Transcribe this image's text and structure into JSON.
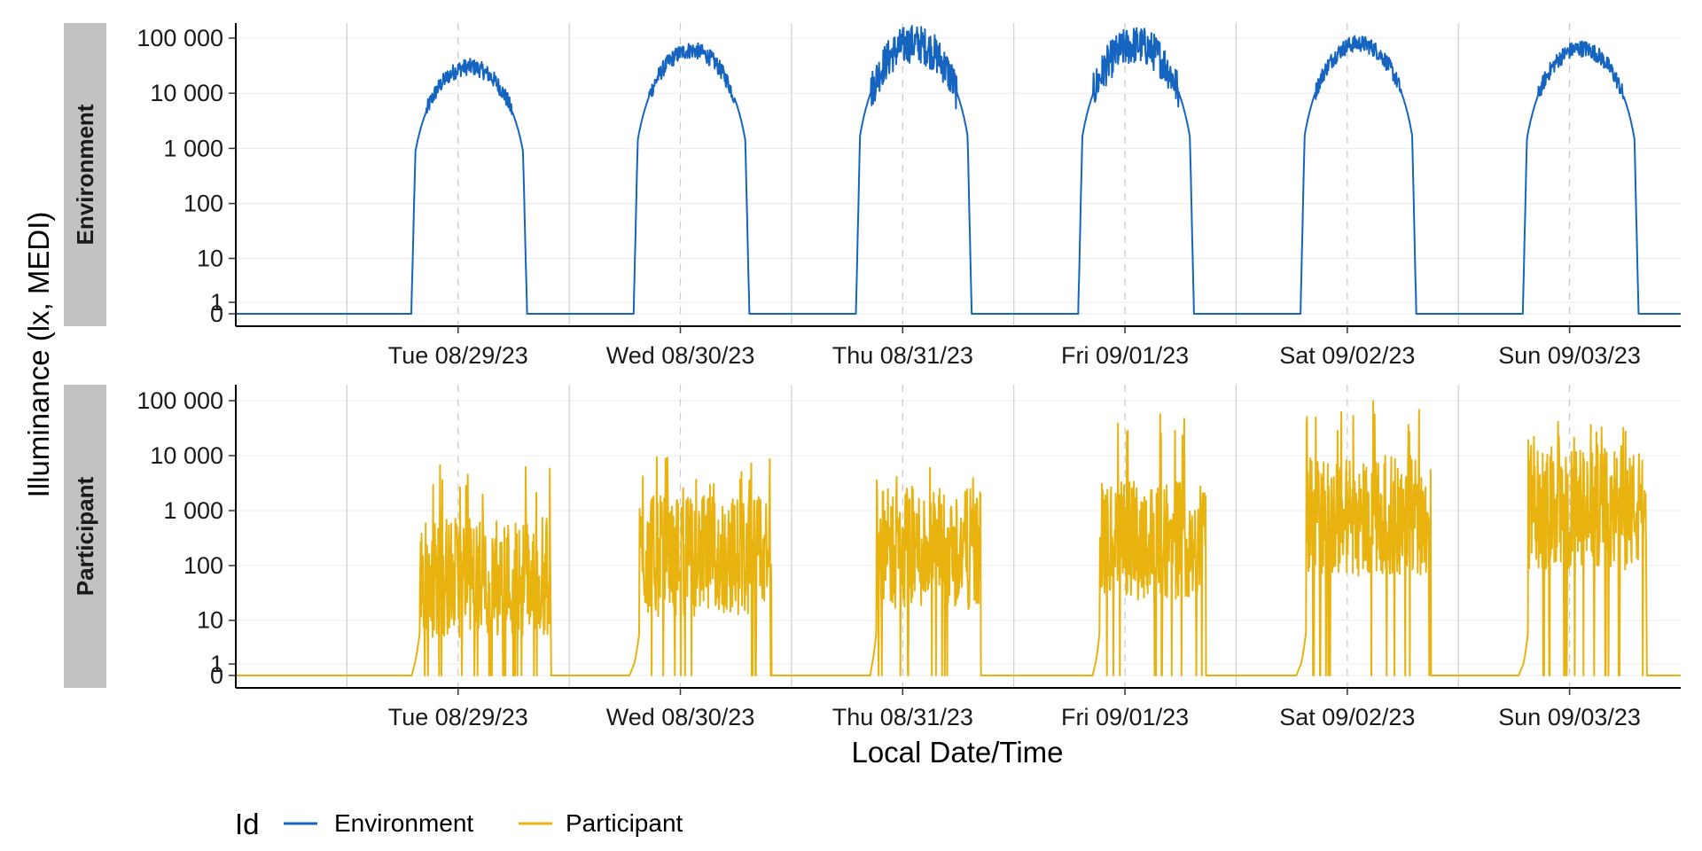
{
  "chart_data": {
    "type": "line",
    "title": "",
    "xlabel": "Local Date/Time",
    "ylabel": "Illuminance (lx, MEDI)",
    "y_scale": "symlog",
    "y_ticks": [
      0,
      1,
      10,
      100,
      1000,
      10000,
      100000
    ],
    "y_tick_labels": [
      "0",
      "1",
      "10",
      "100",
      "1 000",
      "10 000",
      "100 000"
    ],
    "x_range_days": [
      "08/28/23 12:00",
      "09/04/23 00:00"
    ],
    "x_tick_labels": [
      "Tue 08/29/23",
      "Wed 08/30/23",
      "Thu 08/31/23",
      "Fri 09/01/23",
      "Sat 09/02/23",
      "Sun 09/03/23"
    ],
    "grid": "major dashed at noon, major solid at midnight, minor y",
    "legend": {
      "title": "Id",
      "position": "bottom-left",
      "entries": [
        "Environment",
        "Participant"
      ]
    },
    "colors": {
      "Environment": "#1565c0",
      "Participant": "#e8b30f"
    },
    "panels": [
      {
        "facet": "Environment",
        "series": "Environment",
        "days": [
          {
            "date": "Tue 08/29/23",
            "start_h": 6.6,
            "end_h": 19.8,
            "peak_lx": 30000,
            "noisy": "low"
          },
          {
            "date": "Wed 08/30/23",
            "start_h": 6.6,
            "end_h": 19.8,
            "peak_lx": 60000,
            "noisy": "low"
          },
          {
            "date": "Thu 08/31/23",
            "start_h": 6.6,
            "end_h": 19.8,
            "peak_lx": 80000,
            "noisy": "medium"
          },
          {
            "date": "Fri 09/01/23",
            "start_h": 6.6,
            "end_h": 19.8,
            "peak_lx": 75000,
            "noisy": "medium"
          },
          {
            "date": "Sat 09/02/23",
            "start_h": 6.6,
            "end_h": 19.8,
            "peak_lx": 80000,
            "noisy": "low"
          },
          {
            "date": "Sun 09/03/23",
            "start_h": 6.6,
            "end_h": 19.8,
            "peak_lx": 65000,
            "noisy": "low"
          }
        ]
      },
      {
        "facet": "Participant",
        "series": "Participant",
        "days": [
          {
            "date": "Tue 08/29/23",
            "start_h": 7.3,
            "end_h": 22.0,
            "typical_lx": 60,
            "max_lx": 7000
          },
          {
            "date": "Wed 08/30/23",
            "start_h": 7.0,
            "end_h": 21.8,
            "typical_lx": 150,
            "max_lx": 10000
          },
          {
            "date": "Thu 08/31/23",
            "start_h": 8.7,
            "end_h": 20.4,
            "typical_lx": 200,
            "max_lx": 8000
          },
          {
            "date": "Fri 09/01/23",
            "start_h": 8.8,
            "end_h": 20.7,
            "typical_lx": 300,
            "max_lx": 60000
          },
          {
            "date": "Sat 09/02/23",
            "start_h": 7.0,
            "end_h": 21.0,
            "typical_lx": 800,
            "max_lx": 100000
          },
          {
            "date": "Sun 09/03/23",
            "start_h": 7.0,
            "end_h": 20.3,
            "typical_lx": 1000,
            "max_lx": 50000
          }
        ]
      }
    ]
  }
}
